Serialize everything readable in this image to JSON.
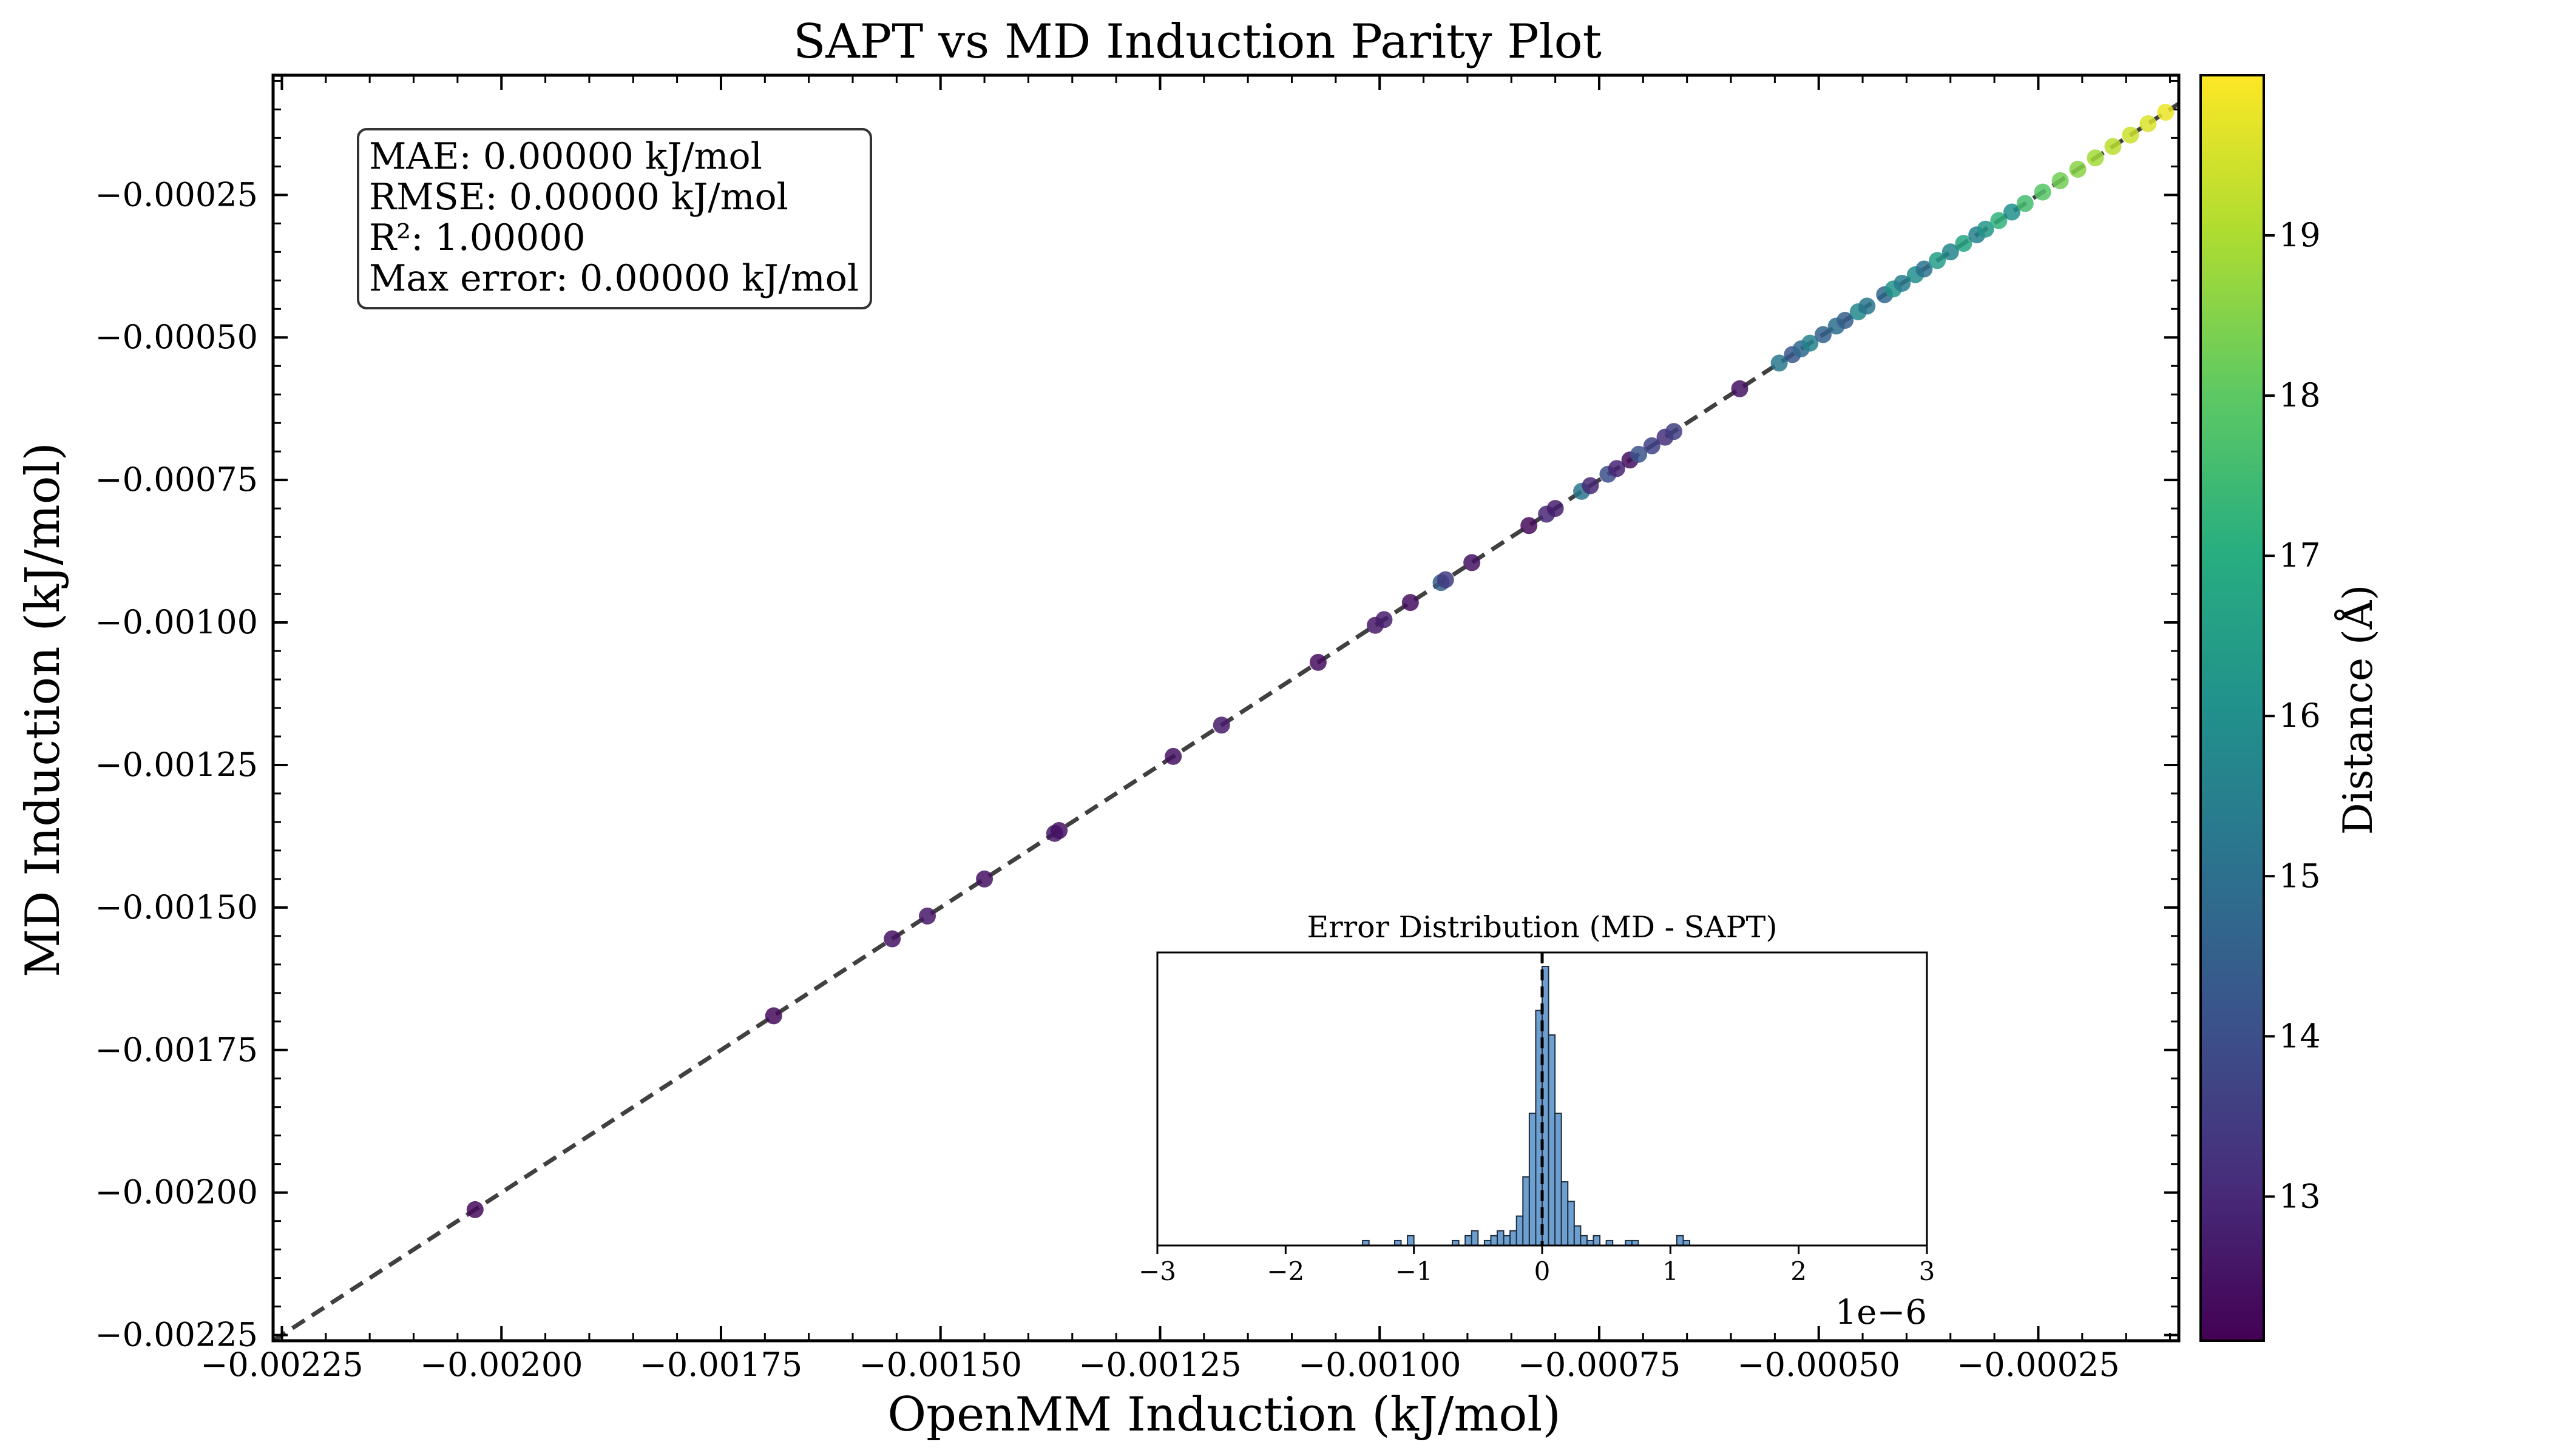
{
  "figure": {
    "title": "SAPT vs MD Induction Parity Plot"
  },
  "chart_data": [
    {
      "type": "scatter",
      "title": "SAPT vs MD Induction Parity Plot",
      "xlabel": "OpenMM Induction (kJ/mol)",
      "ylabel": "MD Induction (kJ/mol)",
      "xlim": [
        -0.00226,
        -9e-05
      ],
      "ylim": [
        -0.00226,
        -4e-05
      ],
      "x_ticks": [
        -0.00225,
        -0.002,
        -0.00175,
        -0.0015,
        -0.00125,
        -0.001,
        -0.00075,
        -0.0005,
        -0.00025
      ],
      "x_tick_labels": [
        "−0.00225",
        "−0.00200",
        "−0.00175",
        "−0.00150",
        "−0.00125",
        "−0.00100",
        "−0.00075",
        "−0.00050",
        "−0.00025"
      ],
      "y_ticks": [
        -0.00025,
        -0.0005,
        -0.00075,
        -0.001,
        -0.00125,
        -0.0015,
        -0.00175,
        -0.002,
        -0.00225
      ],
      "y_tick_labels": [
        "−0.00025",
        "−0.00050",
        "−0.00075",
        "−0.00100",
        "−0.00125",
        "−0.00150",
        "−0.00175",
        "−0.00200",
        "−0.00225"
      ],
      "grid": false,
      "reference_line": "y = x (dashed)",
      "stats_box": {
        "lines": [
          "MAE: 0.00000 kJ/mol",
          "RMSE: 0.00000 kJ/mol",
          "R²: 1.00000",
          "Max error: 0.00000 kJ/mol"
        ],
        "position": "top-left"
      },
      "colorbar": {
        "label": "Distance (Å)",
        "range": [
          12.1,
          20.0
        ],
        "ticks": [
          13,
          14,
          15,
          16,
          17,
          18,
          19
        ],
        "tick_labels": [
          "13",
          "14",
          "15",
          "16",
          "17",
          "18",
          "19"
        ],
        "colormap": "viridis"
      },
      "points": [
        {
          "x": -0.00203,
          "y": -0.00203,
          "d": 12.3
        },
        {
          "x": -0.00169,
          "y": -0.00169,
          "d": 12.3
        },
        {
          "x": -0.001555,
          "y": -0.001555,
          "d": 12.5
        },
        {
          "x": -0.001515,
          "y": -0.001515,
          "d": 12.6
        },
        {
          "x": -0.00145,
          "y": -0.00145,
          "d": 12.5
        },
        {
          "x": -0.00137,
          "y": -0.00137,
          "d": 12.6
        },
        {
          "x": -0.001365,
          "y": -0.001365,
          "d": 12.5
        },
        {
          "x": -0.001235,
          "y": -0.001235,
          "d": 12.5
        },
        {
          "x": -0.00118,
          "y": -0.00118,
          "d": 12.7
        },
        {
          "x": -0.00107,
          "y": -0.00107,
          "d": 12.4
        },
        {
          "x": -0.001005,
          "y": -0.001005,
          "d": 12.6
        },
        {
          "x": -0.000995,
          "y": -0.000995,
          "d": 12.8
        },
        {
          "x": -0.000965,
          "y": -0.000965,
          "d": 12.4
        },
        {
          "x": -0.00093,
          "y": -0.00093,
          "d": 14.5
        },
        {
          "x": -0.000925,
          "y": -0.000925,
          "d": 13.5
        },
        {
          "x": -0.000895,
          "y": -0.000895,
          "d": 12.5
        },
        {
          "x": -0.00083,
          "y": -0.00083,
          "d": 12.3
        },
        {
          "x": -0.00081,
          "y": -0.00081,
          "d": 13.0
        },
        {
          "x": -0.0008,
          "y": -0.0008,
          "d": 12.8
        },
        {
          "x": -0.00077,
          "y": -0.00077,
          "d": 15.2
        },
        {
          "x": -0.00076,
          "y": -0.00076,
          "d": 13.0
        },
        {
          "x": -0.00074,
          "y": -0.00074,
          "d": 14.0
        },
        {
          "x": -0.00073,
          "y": -0.00073,
          "d": 12.9
        },
        {
          "x": -0.000715,
          "y": -0.000715,
          "d": 12.4
        },
        {
          "x": -0.000705,
          "y": -0.000705,
          "d": 14.2
        },
        {
          "x": -0.00069,
          "y": -0.00069,
          "d": 13.7
        },
        {
          "x": -0.000675,
          "y": -0.000675,
          "d": 13.2
        },
        {
          "x": -0.000665,
          "y": -0.000665,
          "d": 13.6
        },
        {
          "x": -0.00059,
          "y": -0.00059,
          "d": 12.5
        },
        {
          "x": -0.000545,
          "y": -0.000545,
          "d": 15.3
        },
        {
          "x": -0.00053,
          "y": -0.00053,
          "d": 14.3
        },
        {
          "x": -0.00052,
          "y": -0.00052,
          "d": 14.8
        },
        {
          "x": -0.00051,
          "y": -0.00051,
          "d": 15.6
        },
        {
          "x": -0.000495,
          "y": -0.000495,
          "d": 14.6
        },
        {
          "x": -0.00048,
          "y": -0.00048,
          "d": 15.0
        },
        {
          "x": -0.00047,
          "y": -0.00047,
          "d": 14.5
        },
        {
          "x": -0.000455,
          "y": -0.000455,
          "d": 15.8
        },
        {
          "x": -0.000445,
          "y": -0.000445,
          "d": 15.2
        },
        {
          "x": -0.000425,
          "y": -0.000425,
          "d": 14.8
        },
        {
          "x": -0.000415,
          "y": -0.000415,
          "d": 16.2
        },
        {
          "x": -0.000405,
          "y": -0.000405,
          "d": 15.4
        },
        {
          "x": -0.00039,
          "y": -0.00039,
          "d": 16.0
        },
        {
          "x": -0.00038,
          "y": -0.00038,
          "d": 15.1
        },
        {
          "x": -0.000365,
          "y": -0.000365,
          "d": 16.5
        },
        {
          "x": -0.00035,
          "y": -0.00035,
          "d": 15.7
        },
        {
          "x": -0.000335,
          "y": -0.000335,
          "d": 16.8
        },
        {
          "x": -0.00032,
          "y": -0.00032,
          "d": 15.5
        },
        {
          "x": -0.00031,
          "y": -0.00031,
          "d": 16.3
        },
        {
          "x": -0.000295,
          "y": -0.000295,
          "d": 17.2
        },
        {
          "x": -0.00028,
          "y": -0.00028,
          "d": 16.1
        },
        {
          "x": -0.000265,
          "y": -0.000265,
          "d": 17.6
        },
        {
          "x": -0.000245,
          "y": -0.000245,
          "d": 17.9
        },
        {
          "x": -0.000225,
          "y": -0.000225,
          "d": 18.3
        },
        {
          "x": -0.000205,
          "y": -0.000205,
          "d": 18.6
        },
        {
          "x": -0.000185,
          "y": -0.000185,
          "d": 18.9
        },
        {
          "x": -0.000165,
          "y": -0.000165,
          "d": 19.2
        },
        {
          "x": -0.000145,
          "y": -0.000145,
          "d": 19.4
        },
        {
          "x": -0.000125,
          "y": -0.000125,
          "d": 19.6
        },
        {
          "x": -0.000105,
          "y": -0.000105,
          "d": 19.8
        }
      ]
    },
    {
      "type": "bar",
      "title": "Error Distribution (MD - SAPT)",
      "xlabel": "",
      "ylabel": "",
      "xlim": [
        -3,
        3
      ],
      "x_ticks": [
        -3,
        -2,
        -1,
        0,
        1,
        2,
        3
      ],
      "x_tick_labels": [
        "−3",
        "−2",
        "−1",
        "0",
        "1",
        "2",
        "3"
      ],
      "x_offset_label": "1e−6",
      "y_ticks": [],
      "reference_line": "x = 0 (dashed)",
      "bin_width": 0.05,
      "bins": [
        {
          "x": -1.4,
          "count": 1
        },
        {
          "x": -1.15,
          "count": 1
        },
        {
          "x": -1.05,
          "count": 2
        },
        {
          "x": -0.7,
          "count": 1
        },
        {
          "x": -0.6,
          "count": 2
        },
        {
          "x": -0.55,
          "count": 3
        },
        {
          "x": -0.45,
          "count": 1
        },
        {
          "x": -0.4,
          "count": 2
        },
        {
          "x": -0.35,
          "count": 3
        },
        {
          "x": -0.3,
          "count": 2
        },
        {
          "x": -0.25,
          "count": 3
        },
        {
          "x": -0.2,
          "count": 6
        },
        {
          "x": -0.15,
          "count": 14
        },
        {
          "x": -0.1,
          "count": 27
        },
        {
          "x": -0.05,
          "count": 48
        },
        {
          "x": 0.0,
          "count": 57
        },
        {
          "x": 0.05,
          "count": 43
        },
        {
          "x": 0.1,
          "count": 27
        },
        {
          "x": 0.15,
          "count": 13
        },
        {
          "x": 0.2,
          "count": 9
        },
        {
          "x": 0.25,
          "count": 4
        },
        {
          "x": 0.3,
          "count": 2
        },
        {
          "x": 0.35,
          "count": 1
        },
        {
          "x": 0.4,
          "count": 2
        },
        {
          "x": 0.5,
          "count": 1
        },
        {
          "x": 0.65,
          "count": 1
        },
        {
          "x": 0.7,
          "count": 1
        },
        {
          "x": 1.05,
          "count": 2
        },
        {
          "x": 1.1,
          "count": 1
        }
      ]
    }
  ]
}
